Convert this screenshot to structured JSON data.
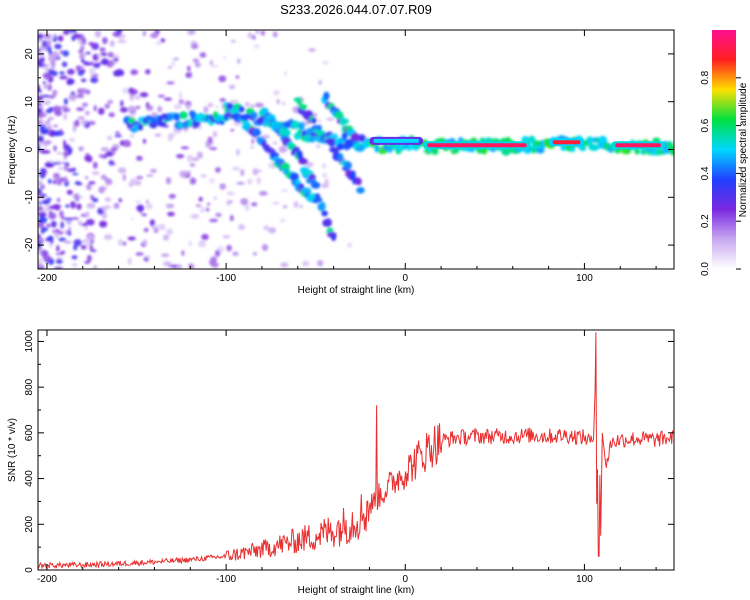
{
  "figure_title": "S233.2026.044.07.07.R09",
  "chart_data": [
    {
      "type": "heatmap",
      "title": "S233.2026.044.07.07.R09",
      "xlabel": "Height of straight line (km)",
      "ylabel": "Frequency (Hz)",
      "xlim": [
        -205,
        150
      ],
      "ylim": [
        -25,
        25
      ],
      "xticks": [
        -200,
        -100,
        0,
        100
      ],
      "yticks": [
        -20,
        -10,
        0,
        10,
        20
      ],
      "colorbar": {
        "label": "Normalized spectral amplitude",
        "range": [
          0,
          1
        ],
        "ticks": [
          0.0,
          0.2,
          0.4,
          0.6,
          0.8
        ],
        "colors": [
          "#ffffff",
          "#c8a8f0",
          "#7a28e0",
          "#2040ff",
          "#00d8ff",
          "#00e040",
          "#ffe000",
          "#ff2020",
          "#ff1090"
        ]
      },
      "features": [
        {
          "name": "main band",
          "x": [
            -155,
            -130,
            -105,
            -95,
            -80,
            -60,
            -40,
            -20,
            0,
            30,
            60,
            90,
            110,
            150
          ],
          "y": [
            5,
            6,
            7,
            8,
            6,
            4,
            2,
            1,
            1,
            0.8,
            0.8,
            1,
            0.8,
            0.5
          ]
        },
        {
          "name": "chirp 1",
          "x": [
            -100,
            -90,
            -80,
            -70,
            -60,
            -50
          ],
          "y": [
            9,
            6,
            2,
            -3,
            -7,
            -11
          ]
        },
        {
          "name": "chirp 2",
          "x": [
            -80,
            -70,
            -60,
            -50,
            -40
          ],
          "y": [
            8,
            4,
            -1,
            -8,
            -19
          ]
        },
        {
          "name": "chirp 3",
          "x": [
            -60,
            -50,
            -40,
            -30,
            -25
          ],
          "y": [
            10,
            5,
            0,
            -5,
            -8
          ]
        },
        {
          "name": "chirp 4",
          "x": [
            -45,
            -35,
            -28
          ],
          "y": [
            11,
            6,
            2
          ]
        }
      ],
      "tonal_segments": [
        {
          "x": [
            10,
            70
          ],
          "y": 0.9,
          "amplitude": 0.95
        },
        {
          "x": [
            80,
            100
          ],
          "y": 1.5,
          "amplitude": 0.9
        },
        {
          "x": [
            115,
            145
          ],
          "y": 0.9,
          "amplitude": 0.95
        },
        {
          "x": [
            -20,
            10
          ],
          "y": 1.8,
          "amplitude": 0.5
        }
      ]
    },
    {
      "type": "line",
      "xlabel": "Height of straight line (km)",
      "ylabel": "SNR (10 * v/v)",
      "xlim": [
        -205,
        150
      ],
      "ylim": [
        0,
        1050
      ],
      "xticks": [
        -200,
        -100,
        0,
        100
      ],
      "yticks": [
        0,
        200,
        400,
        600,
        800,
        1000
      ],
      "series": [
        {
          "name": "SNR",
          "color": "#e83030",
          "x": [
            -205,
            -180,
            -160,
            -140,
            -120,
            -100,
            -90,
            -80,
            -70,
            -60,
            -50,
            -40,
            -30,
            -25,
            -20,
            -15,
            -10,
            -5,
            0,
            5,
            10,
            15,
            20,
            25,
            30,
            40,
            50,
            60,
            70,
            80,
            90,
            100,
            105,
            106,
            107,
            108,
            109,
            110,
            112,
            115,
            120,
            130,
            140,
            150
          ],
          "y": [
            20,
            22,
            28,
            35,
            45,
            60,
            75,
            90,
            110,
            130,
            150,
            175,
            210,
            240,
            280,
            320,
            360,
            400,
            430,
            470,
            510,
            545,
            565,
            575,
            580,
            585,
            585,
            585,
            590,
            585,
            590,
            580,
            560,
            800,
            200,
            1000,
            100,
            600,
            450,
            560,
            570,
            575,
            570,
            580
          ],
          "spikes": [
            {
              "x": -16,
              "y": 720
            },
            {
              "x": 106.5,
              "y": 1040
            },
            {
              "x": 108,
              "y": 60
            }
          ]
        }
      ]
    }
  ]
}
